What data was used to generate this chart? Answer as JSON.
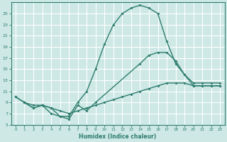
{
  "xlabel": "Humidex (Indice chaleur)",
  "background_color": "#cde8e5",
  "grid_color": "#ffffff",
  "line_color": "#2e7d6e",
  "xlim": [
    -0.5,
    23.5
  ],
  "ylim": [
    5,
    27
  ],
  "xticks": [
    0,
    1,
    2,
    3,
    4,
    5,
    6,
    7,
    8,
    9,
    10,
    11,
    12,
    13,
    14,
    15,
    16,
    17,
    18,
    19,
    20,
    21,
    22,
    23
  ],
  "yticks": [
    5,
    7,
    9,
    11,
    13,
    15,
    17,
    19,
    21,
    23,
    25
  ],
  "line1_x": [
    0,
    1,
    2,
    3,
    4,
    5,
    6,
    7,
    8,
    9,
    10,
    11,
    12,
    13,
    14,
    15,
    16,
    17,
    18,
    19,
    20,
    21,
    22,
    23
  ],
  "line1_y": [
    10,
    9,
    8.5,
    8.5,
    7,
    6.5,
    6.5,
    9,
    11,
    15,
    19.5,
    23,
    25,
    26,
    26.5,
    26,
    25,
    20,
    16,
    14,
    12.5,
    12.5,
    12.5,
    12.5
  ],
  "line2_x": [
    1,
    2,
    3,
    4,
    5,
    6,
    7,
    8,
    9,
    14,
    15,
    16,
    17,
    18,
    19,
    20,
    21,
    22,
    23
  ],
  "line2_y": [
    9,
    8,
    8.5,
    8,
    6.5,
    6,
    8.5,
    7.5,
    9,
    16,
    17.5,
    18,
    18,
    16.5,
    14,
    12,
    12,
    12,
    12
  ],
  "line3_x": [
    0,
    1,
    2,
    3,
    4,
    5,
    6,
    7,
    8,
    9,
    10,
    11,
    12,
    13,
    14,
    15,
    16,
    17,
    18,
    19,
    20,
    21,
    22,
    23
  ],
  "line3_y": [
    10,
    9,
    8,
    8.5,
    8,
    7.5,
    7,
    7.5,
    8,
    8.5,
    9,
    9.5,
    10,
    10.5,
    11,
    11.5,
    12,
    12.5,
    12.5,
    12.5,
    12,
    12,
    12,
    12
  ]
}
